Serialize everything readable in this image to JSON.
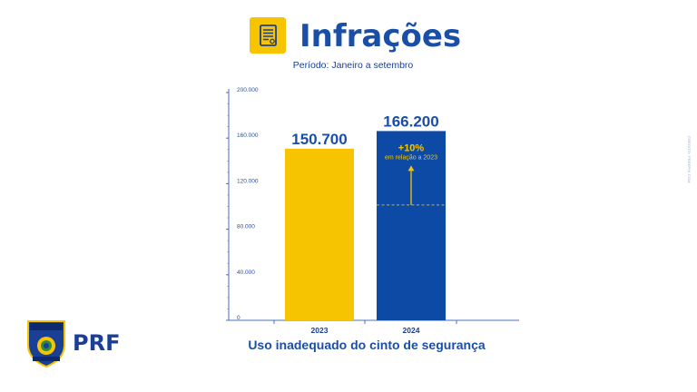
{
  "header": {
    "title": "Infrações",
    "period": "Período: Janeiro a setembro",
    "icon": "document-icon"
  },
  "caption": "Uso inadequado do cinto de segurança",
  "credit": "CRÉDITO: FREEPIK.COM",
  "logo": {
    "badge_text": "POLÍCIA RODOVIÁRIA FEDERAL",
    "text": "PRF"
  },
  "chart_data": {
    "type": "bar",
    "categories": [
      "2023",
      "2024"
    ],
    "values": [
      150700,
      166200
    ],
    "value_labels": [
      "150.700",
      "166.200"
    ],
    "bar_colors": [
      "#f6c400",
      "#0d4aa6"
    ],
    "ylim": [
      0,
      200000
    ],
    "yticks": [
      0,
      40000,
      80000,
      120000,
      160000,
      200000
    ],
    "ytick_labels": [
      "0",
      "40.000",
      "80.000",
      "120.000",
      "160.000",
      "200.000"
    ],
    "grid": false,
    "annotation": {
      "category": "2024",
      "headline": "+10%",
      "text": "em relação a 2023",
      "reference_value": 150700,
      "color": "#f6c400"
    },
    "axis_color": "#4a6fc0"
  }
}
